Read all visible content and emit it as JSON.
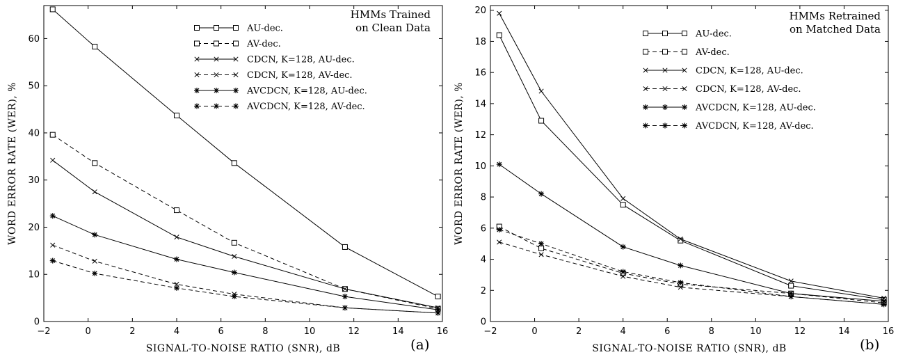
{
  "chart_data": [
    {
      "type": "line",
      "panel": "(a)",
      "title_lines": [
        "HMMs Trained",
        "on Clean Data"
      ],
      "xlabel": "SIGNAL-TO-NOISE RATIO (SNR), dB",
      "ylabel": "WORD ERROR RATE (WER), %",
      "xlim": [
        -2,
        16
      ],
      "ylim": [
        0,
        67
      ],
      "xticks": [
        -2,
        0,
        2,
        4,
        6,
        8,
        10,
        12,
        14,
        16
      ],
      "xtick_labels": [
        "−2",
        "0",
        "2",
        "4",
        "6",
        "8",
        "10",
        "12",
        "14",
        "16"
      ],
      "yticks": [
        0,
        10,
        20,
        30,
        40,
        50,
        60
      ],
      "ytick_labels": [
        "0",
        "10",
        "20",
        "30",
        "40",
        "50",
        "60"
      ],
      "legend_position": "top-right",
      "x": [
        -1.6,
        0.3,
        4.0,
        6.6,
        11.6,
        15.8
      ],
      "series": [
        {
          "name": "AU-dec.",
          "marker": "square",
          "dash": "solid",
          "values": [
            66.2,
            58.3,
            43.7,
            33.6,
            15.8,
            5.3
          ]
        },
        {
          "name": "AV-dec.",
          "marker": "square",
          "dash": "dashed",
          "values": [
            39.6,
            33.6,
            23.6,
            16.7,
            6.9,
            2.7
          ]
        },
        {
          "name": "CDCN, K=128, AU-dec.",
          "marker": "x",
          "dash": "solid",
          "values": [
            34.2,
            27.5,
            17.9,
            13.8,
            6.9,
            2.9
          ]
        },
        {
          "name": "CDCN, K=128, AV-dec.",
          "marker": "x",
          "dash": "dashed",
          "values": [
            16.2,
            12.8,
            7.9,
            5.8,
            2.9,
            1.8
          ]
        },
        {
          "name": "AVCDCN, K=128, AU-dec.",
          "marker": "star",
          "dash": "solid",
          "values": [
            22.4,
            18.4,
            13.2,
            10.4,
            5.3,
            2.5
          ]
        },
        {
          "name": "AVCDCN, K=128, AV-dec.",
          "marker": "star",
          "dash": "dashed",
          "values": [
            12.9,
            10.2,
            7.1,
            5.3,
            2.9,
            1.8
          ]
        }
      ]
    },
    {
      "type": "line",
      "panel": "(b)",
      "title_lines": [
        "HMMs Retrained",
        "on Matched Data"
      ],
      "xlabel": "SIGNAL-TO-NOISE RATIO (SNR), dB",
      "ylabel": "WORD ERROR RATE (WER), %",
      "xlim": [
        -2,
        16
      ],
      "ylim": [
        0,
        20.3
      ],
      "xticks": [
        -2,
        0,
        2,
        4,
        6,
        8,
        10,
        12,
        14,
        16
      ],
      "xtick_labels": [
        "−2",
        "0",
        "2",
        "4",
        "6",
        "8",
        "10",
        "12",
        "14",
        "16"
      ],
      "yticks": [
        0,
        2,
        4,
        6,
        8,
        10,
        12,
        14,
        16,
        18,
        20
      ],
      "ytick_labels": [
        "0",
        "2",
        "4",
        "6",
        "8",
        "10",
        "12",
        "14",
        "16",
        "18",
        "20"
      ],
      "legend_position": "top-right",
      "x": [
        -1.6,
        0.3,
        4.0,
        6.6,
        11.6,
        15.8
      ],
      "series": [
        {
          "name": "AU-dec.",
          "marker": "square",
          "dash": "solid",
          "values": [
            18.4,
            12.9,
            7.5,
            5.2,
            2.3,
            1.4
          ]
        },
        {
          "name": "AV-dec.",
          "marker": "square",
          "dash": "dashed",
          "values": [
            6.1,
            4.7,
            3.1,
            2.4,
            1.8,
            1.2
          ]
        },
        {
          "name": "CDCN, K=128, AU-dec.",
          "marker": "x",
          "dash": "solid",
          "values": [
            19.8,
            14.8,
            7.9,
            5.3,
            2.6,
            1.5
          ]
        },
        {
          "name": "CDCN, K=128, AV-dec.",
          "marker": "x",
          "dash": "dashed",
          "values": [
            5.1,
            4.3,
            2.9,
            2.2,
            1.6,
            1.1
          ]
        },
        {
          "name": "AVCDCN, K=128, AU-dec.",
          "marker": "star",
          "dash": "solid",
          "values": [
            10.1,
            8.2,
            4.8,
            3.6,
            1.8,
            1.3
          ]
        },
        {
          "name": "AVCDCN, K=128, AV-dec.",
          "marker": "star",
          "dash": "dashed",
          "values": [
            5.9,
            5.0,
            3.2,
            2.5,
            1.6,
            1.1
          ]
        }
      ]
    }
  ]
}
